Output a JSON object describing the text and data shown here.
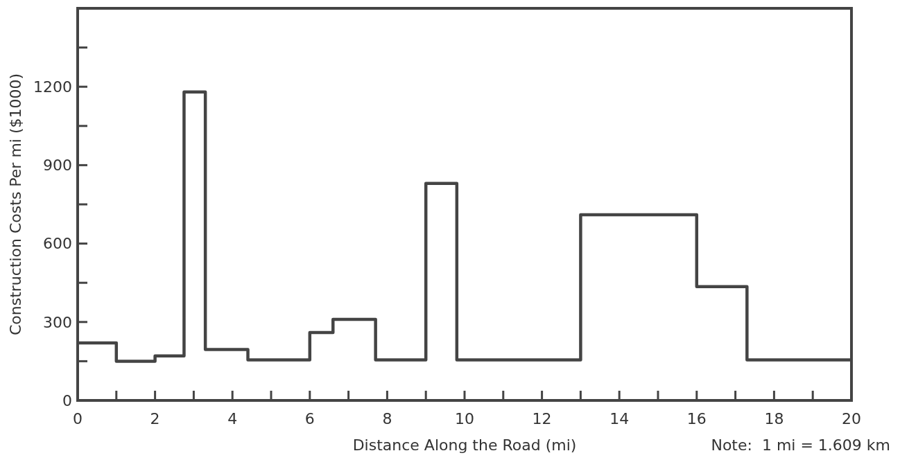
{
  "chart_data": {
    "type": "step",
    "xlabel": "Distance Along the Road (mi)",
    "ylabel": "Construction Costs Per mi ($1000)",
    "annotations": [
      "Note:  1 mi = 1.609 km"
    ],
    "x": [
      0,
      1,
      2,
      2.75,
      3.3,
      4.4,
      6,
      6.6,
      7.7,
      9,
      9.8,
      13,
      16,
      17.3,
      20
    ],
    "series": [
      {
        "color": "#444444",
        "values": [
          220,
          150,
          170,
          1180,
          195,
          155,
          260,
          310,
          155,
          830,
          155,
          710,
          435,
          155,
          155
        ]
      }
    ],
    "xlim": [
      0,
      20
    ],
    "ylim": [
      0,
      1500
    ],
    "xticks": [
      0,
      {
        "value": 1,
        "label": null
      },
      2,
      {
        "value": 3,
        "label": null
      },
      4,
      {
        "value": 5,
        "label": null
      },
      6,
      {
        "value": 7,
        "label": null
      },
      8,
      {
        "value": 9,
        "label": null
      },
      10,
      {
        "value": 11,
        "label": null
      },
      12,
      {
        "value": 13,
        "label": null
      },
      14,
      {
        "value": 15,
        "label": null
      },
      16,
      {
        "value": 17,
        "label": null
      },
      18,
      {
        "value": 19,
        "label": null
      },
      20
    ],
    "yticks": [
      0,
      {
        "value": 150,
        "label": null
      },
      300,
      {
        "value": 450,
        "label": null
      },
      600,
      {
        "value": 750,
        "label": null
      },
      900,
      {
        "value": 1050,
        "label": null
      },
      1200,
      {
        "value": 1350,
        "label": null
      }
    ],
    "grid": false,
    "marker": "none",
    "line_style": "solid"
  }
}
